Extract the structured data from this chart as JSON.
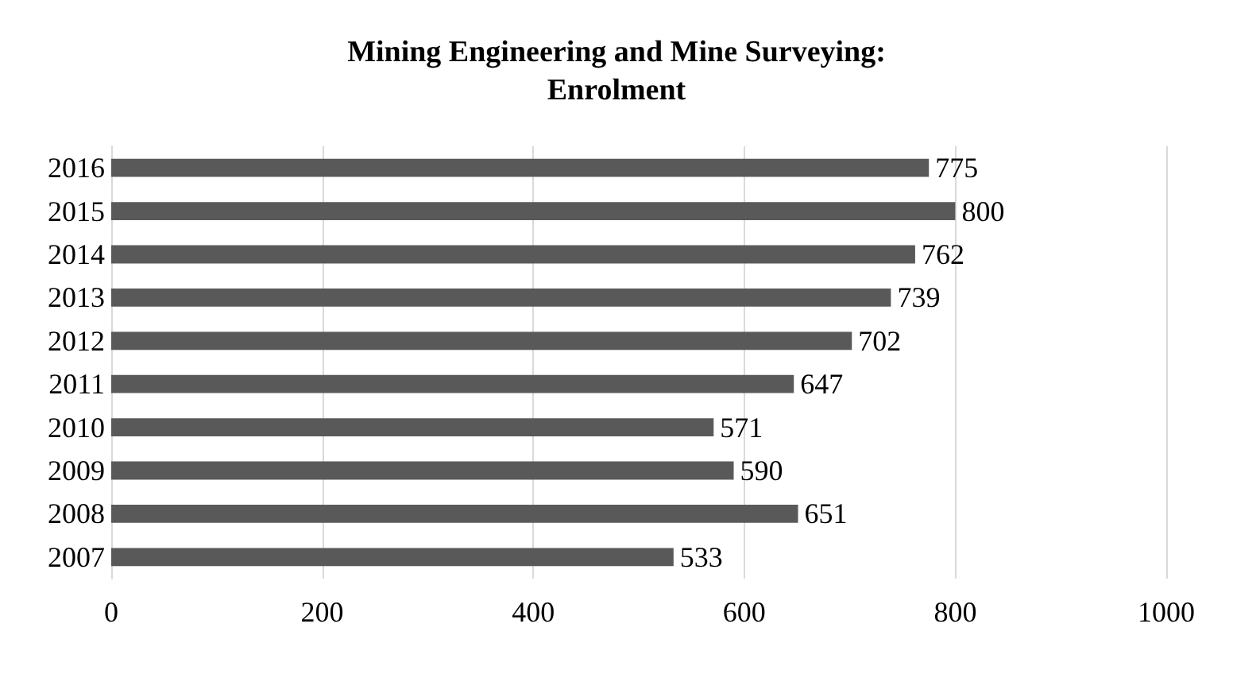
{
  "chart_data": {
    "type": "bar",
    "orientation": "horizontal",
    "title": "Mining Engineering and Mine Surveying:\nEnrolment",
    "categories": [
      "2016",
      "2015",
      "2014",
      "2013",
      "2012",
      "2011",
      "2010",
      "2009",
      "2008",
      "2007"
    ],
    "values": [
      775,
      800,
      762,
      739,
      702,
      647,
      571,
      590,
      651,
      533
    ],
    "color": "#595959",
    "xlim": [
      0,
      1000
    ],
    "xticks": [
      0,
      200,
      400,
      600,
      800,
      1000
    ],
    "grid": "x",
    "data_labels": true
  }
}
